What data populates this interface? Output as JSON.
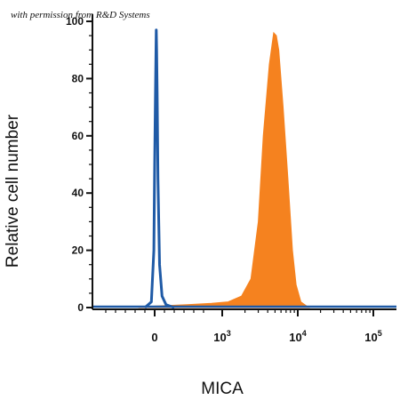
{
  "watermark": "with permission from R&D Systems",
  "chart_data": {
    "type": "area",
    "xlabel": "MICA",
    "ylabel": "Relative cell number",
    "ylim": [
      0,
      100
    ],
    "yticks": [
      "0",
      "20",
      "40",
      "60",
      "80",
      "100"
    ],
    "xticks": [
      {
        "base": "0",
        "exp": ""
      },
      {
        "base": "10",
        "exp": "3"
      },
      {
        "base": "10",
        "exp": "4"
      },
      {
        "base": "10",
        "exp": "5"
      }
    ],
    "x_scale": "biexponential",
    "x_positions": [
      0,
      1000,
      10000,
      100000
    ],
    "series": [
      {
        "color": "#1f5aa6",
        "style": "outline",
        "x": [
          -60,
          -20,
          -5,
          0,
          5,
          8,
          10,
          12,
          15,
          20,
          30,
          45,
          70,
          120
        ],
        "y": [
          0,
          2,
          20,
          50,
          75,
          90,
          97,
          90,
          75,
          45,
          15,
          4,
          1,
          0
        ]
      },
      {
        "color": "#f5821f",
        "style": "filled",
        "x": [
          -100,
          0,
          200,
          600,
          1200,
          1800,
          2400,
          3000,
          3500,
          4200,
          4800,
          5200,
          5600,
          6400,
          7400,
          8500,
          9500,
          11000,
          14000
        ],
        "y": [
          0,
          0.5,
          1,
          1.5,
          2,
          4,
          10,
          30,
          60,
          85,
          96,
          95,
          90,
          70,
          45,
          20,
          8,
          2,
          0
        ]
      }
    ]
  }
}
